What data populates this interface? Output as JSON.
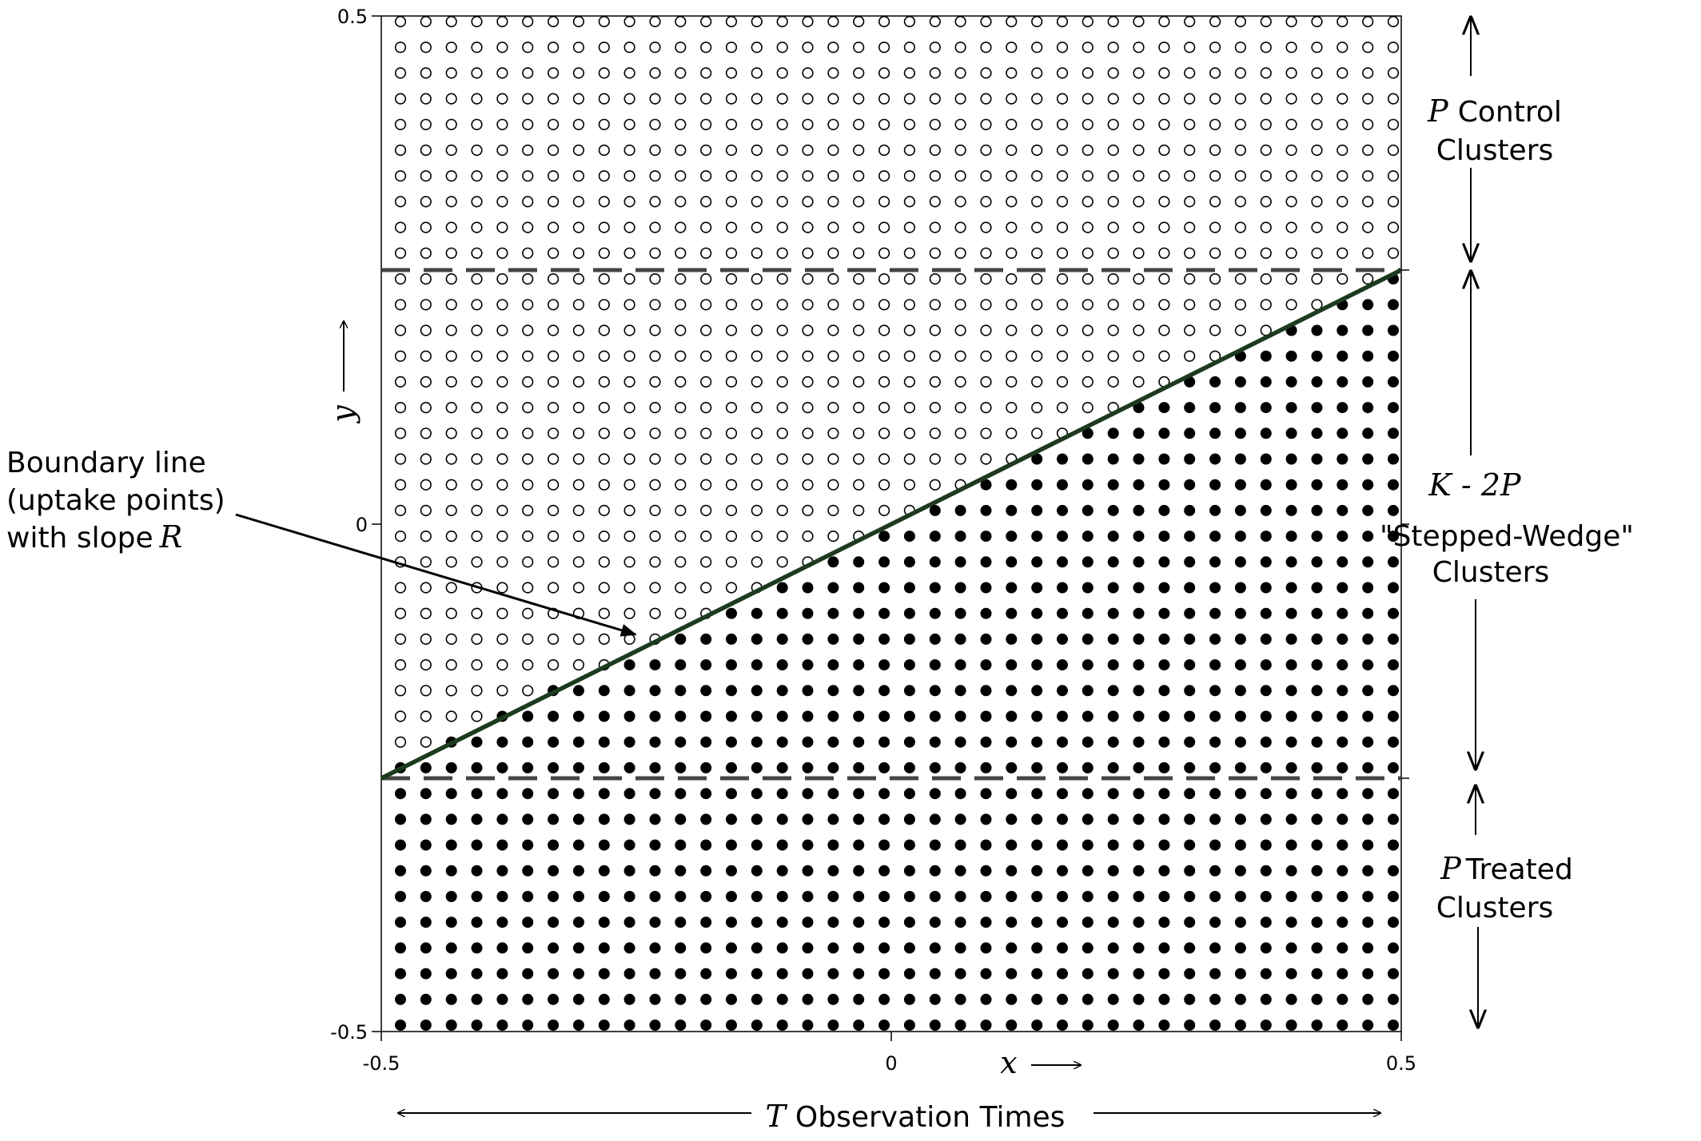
{
  "x_axis": {
    "variable": "x",
    "ticks": [
      "-0.5",
      "0",
      "0.5"
    ],
    "span": "T",
    "span_text": "Observation Times"
  },
  "y_axis": {
    "variable": "y",
    "ticks": [
      "0.5",
      "0",
      "-0.5"
    ]
  },
  "regions": {
    "control": {
      "symbol": "P",
      "text": "Control",
      "line2": "Clusters"
    },
    "wedge": {
      "formula": "K - 2P",
      "line1": "\"Stepped-Wedge\"",
      "line2": "Clusters"
    },
    "treated": {
      "symbol": "P",
      "text": "Treated",
      "line2": "Clusters"
    }
  },
  "annotation": {
    "line1": "Boundary line",
    "line2": "(uptake points)",
    "line3_prefix": "with slope",
    "line3_symbol": "R"
  },
  "grid": {
    "columns": 40,
    "rows": 40,
    "control_rows": 10,
    "treated_rows": 10,
    "x_range": [
      -0.5,
      0.5
    ],
    "y_range": [
      -0.5,
      0.5
    ],
    "boundary": {
      "from": [
        -0.5,
        -0.25
      ],
      "to": [
        0.5,
        0.25
      ],
      "slope_label": "R"
    },
    "dividers_y": [
      0.25,
      -0.25
    ]
  },
  "colors": {
    "boundary_line": "#1e3a1e",
    "divider": "#444444",
    "treated_dot": "#000000",
    "control_dot": "#000000"
  }
}
